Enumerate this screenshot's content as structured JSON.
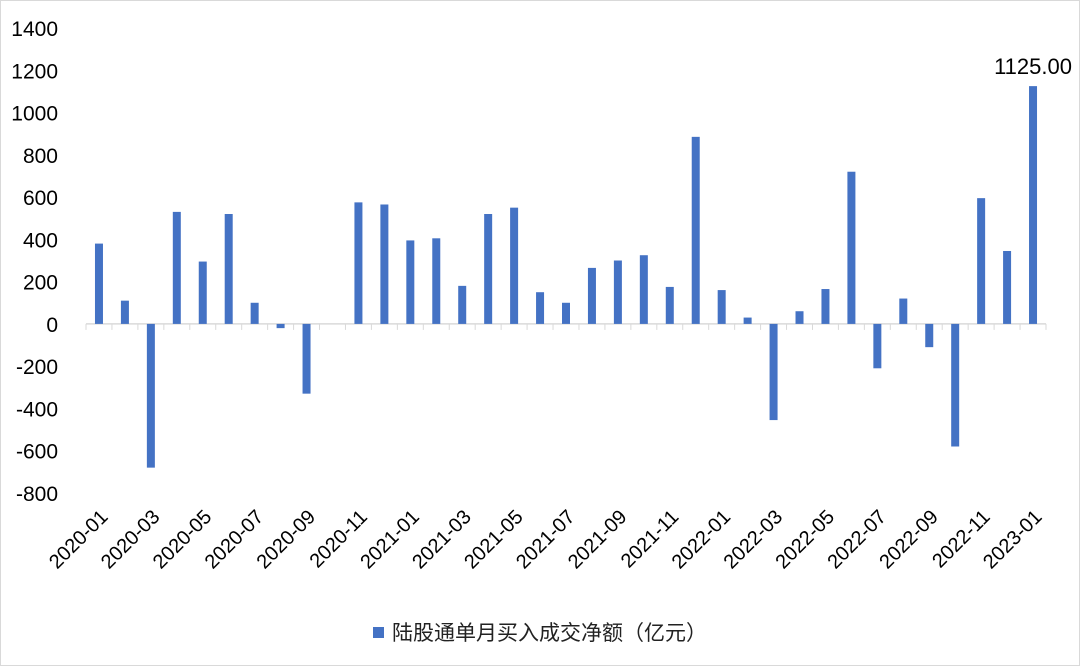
{
  "chart_data": {
    "type": "bar",
    "categories": [
      "2020-01",
      "2020-02",
      "2020-03",
      "2020-04",
      "2020-05",
      "2020-06",
      "2020-07",
      "2020-08",
      "2020-09",
      "2020-10",
      "2020-11",
      "2020-12",
      "2021-01",
      "2021-02",
      "2021-03",
      "2021-04",
      "2021-05",
      "2021-06",
      "2021-07",
      "2021-08",
      "2021-09",
      "2021-10",
      "2021-11",
      "2021-12",
      "2022-01",
      "2022-02",
      "2022-03",
      "2022-04",
      "2022-05",
      "2022-06",
      "2022-07",
      "2022-08",
      "2022-09",
      "2022-10",
      "2022-11",
      "2022-12",
      "2023-01"
    ],
    "tick_labels": [
      "2020-01",
      "2020-03",
      "2020-05",
      "2020-07",
      "2020-09",
      "2020-11",
      "2021-01",
      "2021-03",
      "2021-05",
      "2021-07",
      "2021-09",
      "2021-11",
      "2022-01",
      "2022-03",
      "2022-05",
      "2022-07",
      "2022-09",
      "2022-11",
      "2023-01"
    ],
    "series": [
      {
        "name": "陆股通单月买入成交净额（亿元）",
        "values": [
          380,
          110,
          -680,
          530,
          295,
          520,
          100,
          -20,
          -330,
          0,
          575,
          565,
          395,
          405,
          180,
          520,
          550,
          150,
          100,
          265,
          300,
          325,
          175,
          885,
          160,
          30,
          -455,
          60,
          165,
          720,
          -210,
          120,
          -110,
          -580,
          595,
          345,
          1125
        ]
      }
    ],
    "ylim": [
      -800,
      1400
    ],
    "yticks": [
      -800,
      -600,
      -400,
      -200,
      0,
      200,
      400,
      600,
      800,
      1000,
      1200,
      1400
    ],
    "data_labels": [
      {
        "category": "2023-01",
        "text": "1125.00"
      }
    ],
    "colors": {
      "bar": "#4472C4",
      "axis": "#d9d9d9"
    },
    "legend_position": "bottom",
    "grid": false
  }
}
